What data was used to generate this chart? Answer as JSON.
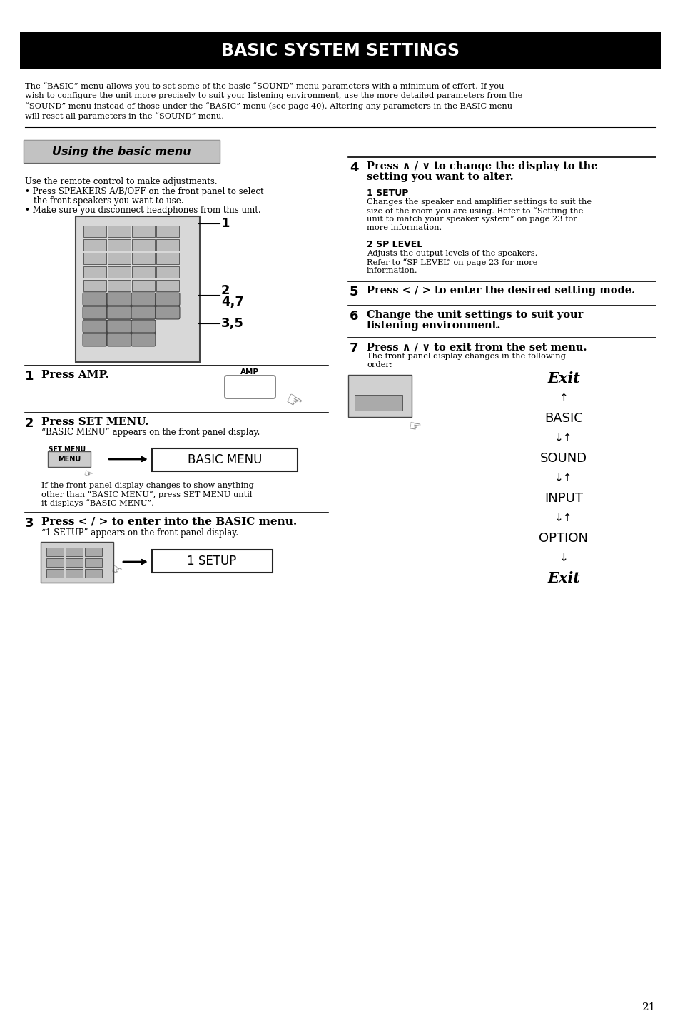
{
  "title": "BASIC SYSTEM SETTINGS",
  "title_bg": "#000000",
  "title_color": "#ffffff",
  "page_bg": "#ffffff",
  "page_number": "21",
  "intro_lines": [
    "The “BASIC” menu allows you to set some of the basic “SOUND” menu parameters with a minimum of effort. If you",
    "wish to configure the unit more precisely to suit your listening environment, use the more detailed parameters from the",
    "“SOUND” menu instead of those under the “BASIC” menu (see page 40). Altering any parameters in the BASIC menu",
    "will reset all parameters in the “SOUND” menu."
  ],
  "section_title": "Using the basic menu",
  "step1_label": "1",
  "step1_text": "Press AMP.",
  "step2_label": "2",
  "step2_text": "Press SET MENU.",
  "step2_sub": "“BASIC MENU” appears on the front panel display.",
  "step2_display": "BASIC MENU",
  "step2_note_lines": [
    "If the front panel display changes to show anything",
    "other than “BASIC MENU”, press SET MENU until",
    "it displays “BASIC MENU”."
  ],
  "step3_label": "3",
  "step3_text": "Press < / > to enter into the BASIC menu.",
  "step3_sub": "“1 SETUP” appears on the front panel display.",
  "step3_display": "1 SETUP",
  "step4_label": "4",
  "step4_text_line1": "Press ∧ / ∨ to change the display to the",
  "step4_text_line2": "setting you want to alter.",
  "step4a_label": "1 SETUP",
  "step4a_lines": [
    "Changes the speaker and amplifier settings to suit the",
    "size of the room you are using. Refer to “Setting the",
    "unit to match your speaker system” on page 23 for",
    "more information."
  ],
  "step4b_label": "2 SP LEVEL",
  "step4b_lines": [
    "Adjusts the output levels of the speakers.",
    "Refer to “SP LEVEL” on page 23 for more",
    "information."
  ],
  "step5_label": "5",
  "step5_text": "Press < / > to enter the desired setting mode.",
  "step6_label": "6",
  "step6_text_line1": "Change the unit settings to suit your",
  "step6_text_line2": "listening environment.",
  "step7_label": "7",
  "step7_text": "Press ∧ / ∨ to exit from the set menu.",
  "step7_sub_line1": "The front panel display changes in the following",
  "step7_sub_line2": "order:",
  "exit_sequence": [
    "Exit",
    "↑",
    "BASIC",
    "↓↑",
    "SOUND",
    "↓↑",
    "INPUT",
    "↓↑",
    "OPTION",
    "↓",
    "Exit"
  ]
}
